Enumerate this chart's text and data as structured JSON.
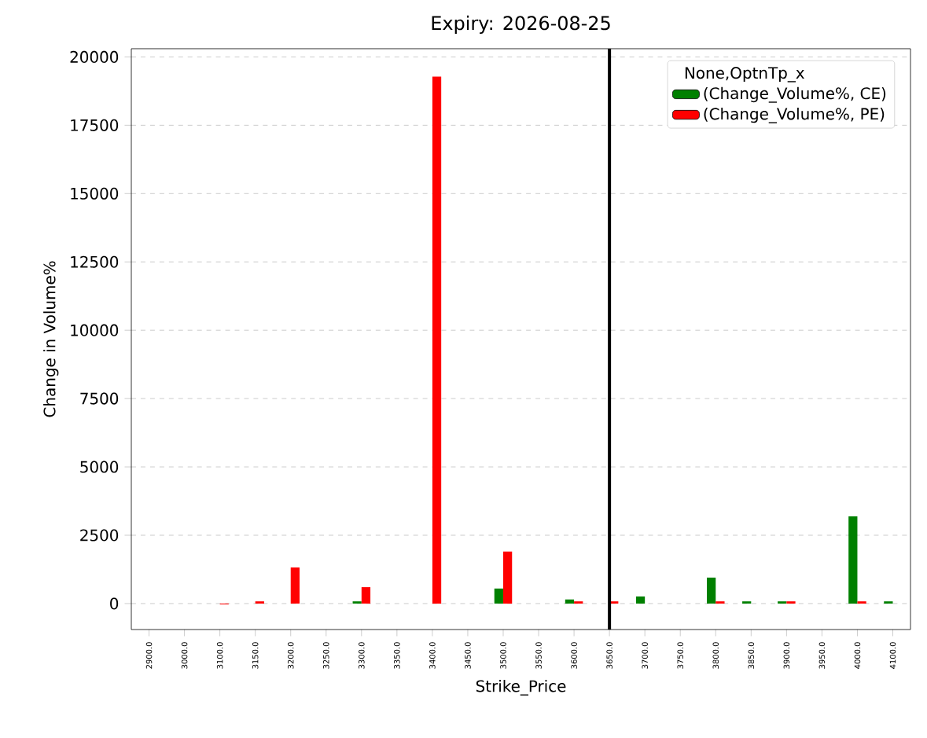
{
  "chart_data": {
    "type": "bar",
    "title": "Expiry: 2026-08-25",
    "xlabel": "Strike_Price",
    "ylabel": "Change in Volume%",
    "legend_title": "None,OptnTp_x",
    "categories": [
      "2900.0",
      "3000.0",
      "3100.0",
      "3150.0",
      "3200.0",
      "3250.0",
      "3300.0",
      "3350.0",
      "3400.0",
      "3450.0",
      "3500.0",
      "3550.0",
      "3600.0",
      "3650.0",
      "3700.0",
      "3750.0",
      "3800.0",
      "3850.0",
      "3900.0",
      "3950.0",
      "4000.0",
      "4100.0"
    ],
    "series": [
      {
        "name": "(Change_Volume%, CE)",
        "color": "#008000",
        "values": [
          null,
          null,
          null,
          null,
          null,
          null,
          80,
          null,
          null,
          null,
          550,
          null,
          150,
          null,
          260,
          null,
          950,
          80,
          80,
          null,
          3190,
          80
        ]
      },
      {
        "name": "(Change_Volume%, PE)",
        "color": "#ff0000",
        "values": [
          null,
          null,
          -30,
          80,
          1320,
          null,
          600,
          null,
          19280,
          null,
          1900,
          null,
          80,
          80,
          null,
          null,
          80,
          null,
          80,
          null,
          80,
          null
        ]
      }
    ],
    "ylim": [
      -950,
      20300
    ],
    "yticks": [
      0,
      2500,
      5000,
      7500,
      10000,
      12500,
      15000,
      17500,
      20000
    ],
    "grid": "y",
    "legend": "top right",
    "ref_lines": [
      {
        "axis": "x",
        "value": "3650.0",
        "color": "#000000"
      }
    ]
  }
}
